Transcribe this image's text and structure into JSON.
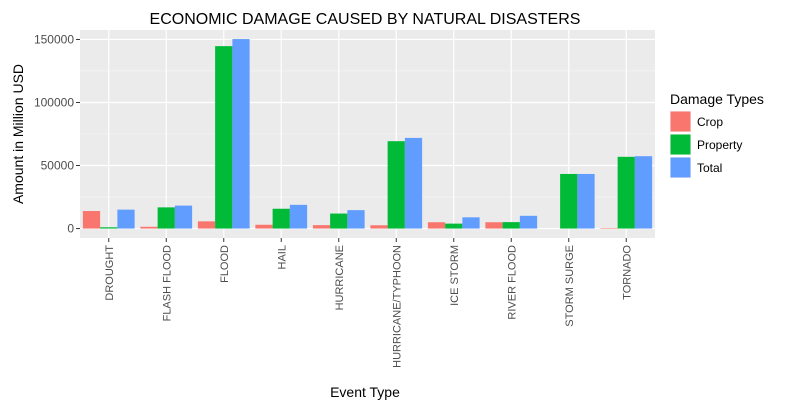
{
  "chart_data": {
    "type": "bar",
    "title": "ECONOMIC DAMAGE CAUSED BY NATURAL DISASTERS",
    "xlabel": "Event Type",
    "ylabel": "Amount in Million USD",
    "ylim": [
      -7500,
      157500
    ],
    "yticks": [
      0,
      50000,
      100000,
      150000
    ],
    "ytick_labels": [
      "0",
      "50000",
      "100000",
      "150000"
    ],
    "grid": true,
    "legend_title": "Damage Types",
    "legend_position": "right",
    "categories": [
      "DROUGHT",
      "FLASH FLOOD",
      "FLOOD",
      "HAIL",
      "HURRICANE",
      "HURRICANE/TYPHOON",
      "ICE STORM",
      "RIVER FLOOD",
      "STORM SURGE",
      "TORNADO"
    ],
    "series": [
      {
        "name": "Crop",
        "color": "#F8766D",
        "values": [
          13900,
          1400,
          5700,
          3000,
          2700,
          2600,
          5000,
          5000,
          0,
          400
        ]
      },
      {
        "name": "Property",
        "color": "#00BA38",
        "values": [
          1000,
          16800,
          144700,
          15700,
          11900,
          69300,
          3900,
          5100,
          43300,
          56900
        ]
      },
      {
        "name": "Total",
        "color": "#619CFF",
        "values": [
          15000,
          18200,
          150300,
          18800,
          14600,
          71900,
          8900,
          10100,
          43300,
          57400
        ]
      }
    ]
  }
}
